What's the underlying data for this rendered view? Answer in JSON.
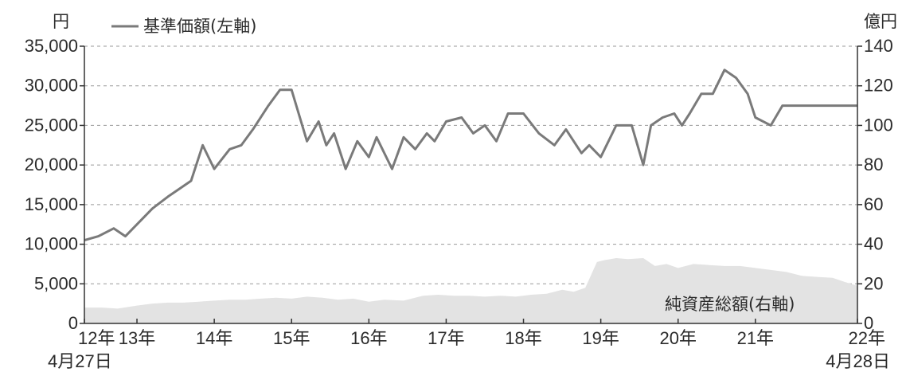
{
  "chart_data": {
    "type": "line",
    "left_unit": "円",
    "right_unit": "億円",
    "legend_line": "基準価額(左軸)",
    "area_label": "純資産総額(右軸)",
    "x_ticks": [
      {
        "label": "12年",
        "sub": "4月27日"
      },
      {
        "label": "13年",
        "sub": ""
      },
      {
        "label": "14年",
        "sub": ""
      },
      {
        "label": "15年",
        "sub": ""
      },
      {
        "label": "16年",
        "sub": ""
      },
      {
        "label": "17年",
        "sub": ""
      },
      {
        "label": "18年",
        "sub": ""
      },
      {
        "label": "19年",
        "sub": ""
      },
      {
        "label": "20年",
        "sub": ""
      },
      {
        "label": "21年",
        "sub": ""
      },
      {
        "label": "22年",
        "sub": "4月28日"
      }
    ],
    "x_range": [
      2012.32,
      2022.32
    ],
    "x_tick_positions": [
      2012.32,
      2013.0,
      2014.0,
      2015.0,
      2016.0,
      2017.0,
      2018.0,
      2019.0,
      2020.0,
      2021.0,
      2022.32
    ],
    "ylim_left": [
      0,
      35000
    ],
    "yticks_left": [
      "0",
      "5,000",
      "10,000",
      "15,000",
      "20,000",
      "25,000",
      "30,000",
      "35,000"
    ],
    "ylim_right": [
      0,
      140
    ],
    "yticks_right": [
      "0",
      "20",
      "40",
      "60",
      "80",
      "100",
      "120",
      "140"
    ],
    "grid": true,
    "series": [
      {
        "name": "基準価額(左軸)",
        "axis": "left",
        "color": "#7a7a7a",
        "x": [
          2012.32,
          2012.5,
          2012.7,
          2012.85,
          2013.0,
          2013.2,
          2013.4,
          2013.55,
          2013.7,
          2013.85,
          2014.0,
          2014.2,
          2014.35,
          2014.5,
          2014.7,
          2014.85,
          2015.0,
          2015.2,
          2015.35,
          2015.45,
          2015.55,
          2015.7,
          2015.85,
          2016.0,
          2016.1,
          2016.3,
          2016.45,
          2016.6,
          2016.75,
          2016.85,
          2017.0,
          2017.2,
          2017.35,
          2017.5,
          2017.65,
          2017.8,
          2018.0,
          2018.2,
          2018.4,
          2018.55,
          2018.75,
          2018.85,
          2019.0,
          2019.2,
          2019.4,
          2019.55,
          2019.65,
          2019.8,
          2019.95,
          2020.05,
          2020.15,
          2020.3,
          2020.45,
          2020.6,
          2020.75,
          2020.9,
          2021.0,
          2021.2,
          2021.35,
          2021.55,
          2021.75,
          2021.95,
          2022.1,
          2022.2,
          2022.32
        ],
        "values": [
          10500,
          11000,
          12000,
          11000,
          12500,
          14500,
          16000,
          17000,
          18000,
          22500,
          19500,
          22000,
          22500,
          24500,
          27500,
          29500,
          29500,
          23000,
          25500,
          22500,
          24000,
          19500,
          23000,
          21000,
          23500,
          19500,
          23500,
          22000,
          24000,
          23000,
          25500,
          26000,
          24000,
          25000,
          23000,
          26500,
          26500,
          24000,
          22500,
          24500,
          21500,
          22500,
          21000,
          25000,
          25000,
          20000,
          25000,
          26000,
          26500,
          25000,
          26500,
          29000,
          29000,
          32000,
          31000,
          29000,
          26000,
          25000,
          27500,
          27500,
          27500,
          27500,
          27500,
          27500,
          27500
        ]
      },
      {
        "name": "純資産総額(右軸)",
        "axis": "right",
        "color": "#e3e3e3",
        "x": [
          2012.32,
          2012.55,
          2012.75,
          2013.0,
          2013.2,
          2013.4,
          2013.6,
          2013.8,
          2014.0,
          2014.2,
          2014.4,
          2014.6,
          2014.8,
          2015.0,
          2015.2,
          2015.4,
          2015.6,
          2015.8,
          2016.0,
          2016.2,
          2016.45,
          2016.7,
          2016.9,
          2017.1,
          2017.3,
          2017.5,
          2017.7,
          2017.9,
          2018.1,
          2018.3,
          2018.5,
          2018.65,
          2018.8,
          2018.95,
          2019.05,
          2019.2,
          2019.35,
          2019.55,
          2019.7,
          2019.85,
          2020.0,
          2020.2,
          2020.4,
          2020.6,
          2020.8,
          2021.0,
          2021.2,
          2021.4,
          2021.6,
          2021.8,
          2022.0,
          2022.15,
          2022.32
        ],
        "values": [
          8,
          8,
          7.5,
          9,
          10,
          10.5,
          10.5,
          11,
          11.5,
          12,
          12,
          12.5,
          13,
          12.5,
          13.5,
          13,
          12,
          12.5,
          11,
          12,
          11.5,
          14,
          14.5,
          14,
          14,
          13.5,
          14,
          13.5,
          14.5,
          15,
          17,
          16,
          18,
          31,
          32,
          33,
          32.5,
          33,
          29,
          30,
          28,
          30,
          29.5,
          29,
          29,
          28,
          27,
          26,
          24,
          23.5,
          23,
          21,
          19
        ]
      }
    ]
  }
}
